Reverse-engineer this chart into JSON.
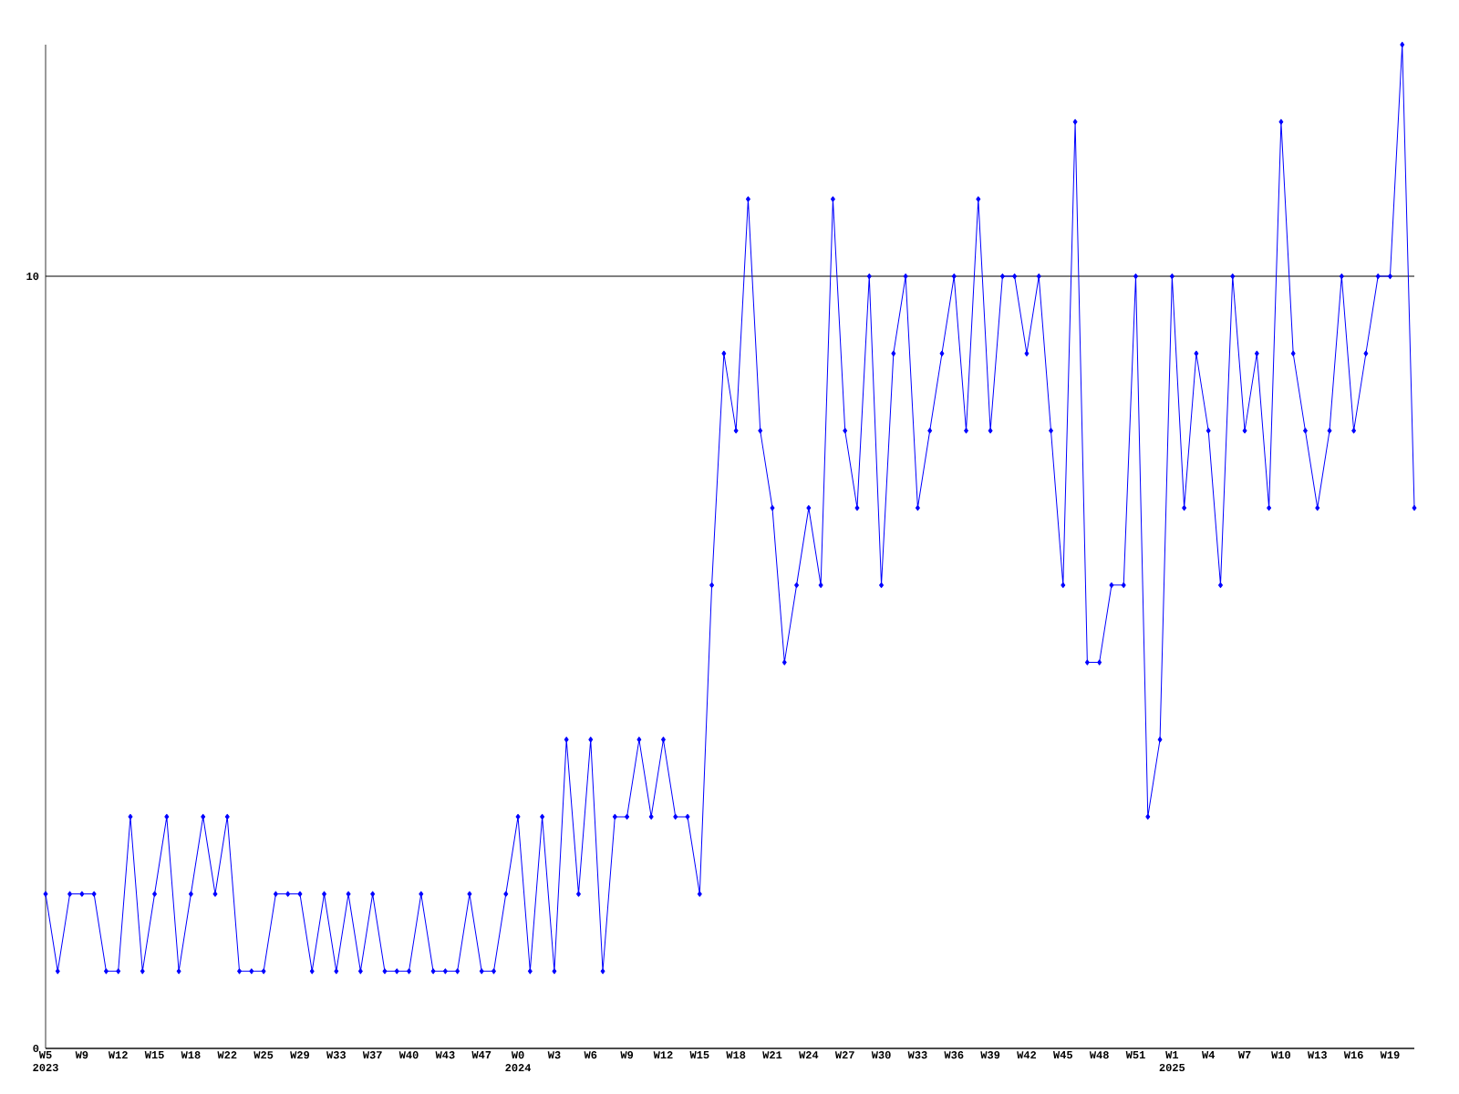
{
  "chart_data": {
    "type": "line",
    "categories": [
      "W5 2023",
      null,
      null,
      "W9",
      null,
      null,
      "W12",
      null,
      null,
      "W15",
      null,
      null,
      "W18",
      null,
      null,
      "W22",
      null,
      null,
      "W25",
      null,
      null,
      "W29",
      null,
      null,
      "W33",
      null,
      null,
      "W37",
      null,
      null,
      "W40",
      null,
      null,
      "W43",
      null,
      null,
      "W47",
      null,
      null,
      "W0 2024",
      null,
      null,
      "W3",
      null,
      null,
      "W6",
      null,
      null,
      "W9",
      null,
      null,
      "W12",
      null,
      null,
      "W15",
      null,
      null,
      "W18",
      null,
      null,
      "W21",
      null,
      null,
      "W24",
      null,
      null,
      "W27",
      null,
      null,
      "W30",
      null,
      null,
      "W33",
      null,
      null,
      "W36",
      null,
      null,
      "W39",
      null,
      null,
      "W42",
      null,
      null,
      "W45",
      null,
      null,
      "W48",
      null,
      null,
      "W51",
      null,
      null,
      "W1 2025",
      null,
      null,
      "W4",
      null,
      null,
      "W7",
      null,
      null,
      "W10",
      null,
      null,
      "W13",
      null,
      null,
      "W16",
      null,
      null,
      "W19",
      null,
      null
    ],
    "series": [
      {
        "color": "#0000ff",
        "values": [
          2,
          1,
          2,
          2,
          2,
          1,
          1,
          3,
          1,
          2,
          3,
          1,
          2,
          3,
          2,
          3,
          1,
          1,
          1,
          2,
          2,
          2,
          1,
          2,
          1,
          2,
          1,
          2,
          1,
          1,
          1,
          2,
          1,
          1,
          1,
          2,
          1,
          1,
          2,
          3,
          1,
          3,
          1,
          4,
          2,
          4,
          1,
          3,
          3,
          4,
          3,
          4,
          3,
          3,
          2,
          6,
          9,
          8,
          11,
          8,
          7,
          5,
          6,
          7,
          6,
          11,
          8,
          7,
          10,
          6,
          9,
          10,
          7,
          8,
          9,
          10,
          8,
          11,
          8,
          10,
          10,
          9,
          10,
          8,
          6,
          12,
          5,
          5,
          6,
          6,
          10,
          3,
          4,
          10,
          7,
          9,
          8,
          6,
          10,
          8,
          9,
          7,
          12,
          9,
          8,
          7,
          8,
          10,
          8,
          9,
          10,
          10,
          13,
          7
        ]
      }
    ],
    "ylim": [
      0,
      13
    ],
    "yticks": [
      0,
      10
    ],
    "grid": "y",
    "marker": "diamond",
    "line_style": "solid"
  }
}
